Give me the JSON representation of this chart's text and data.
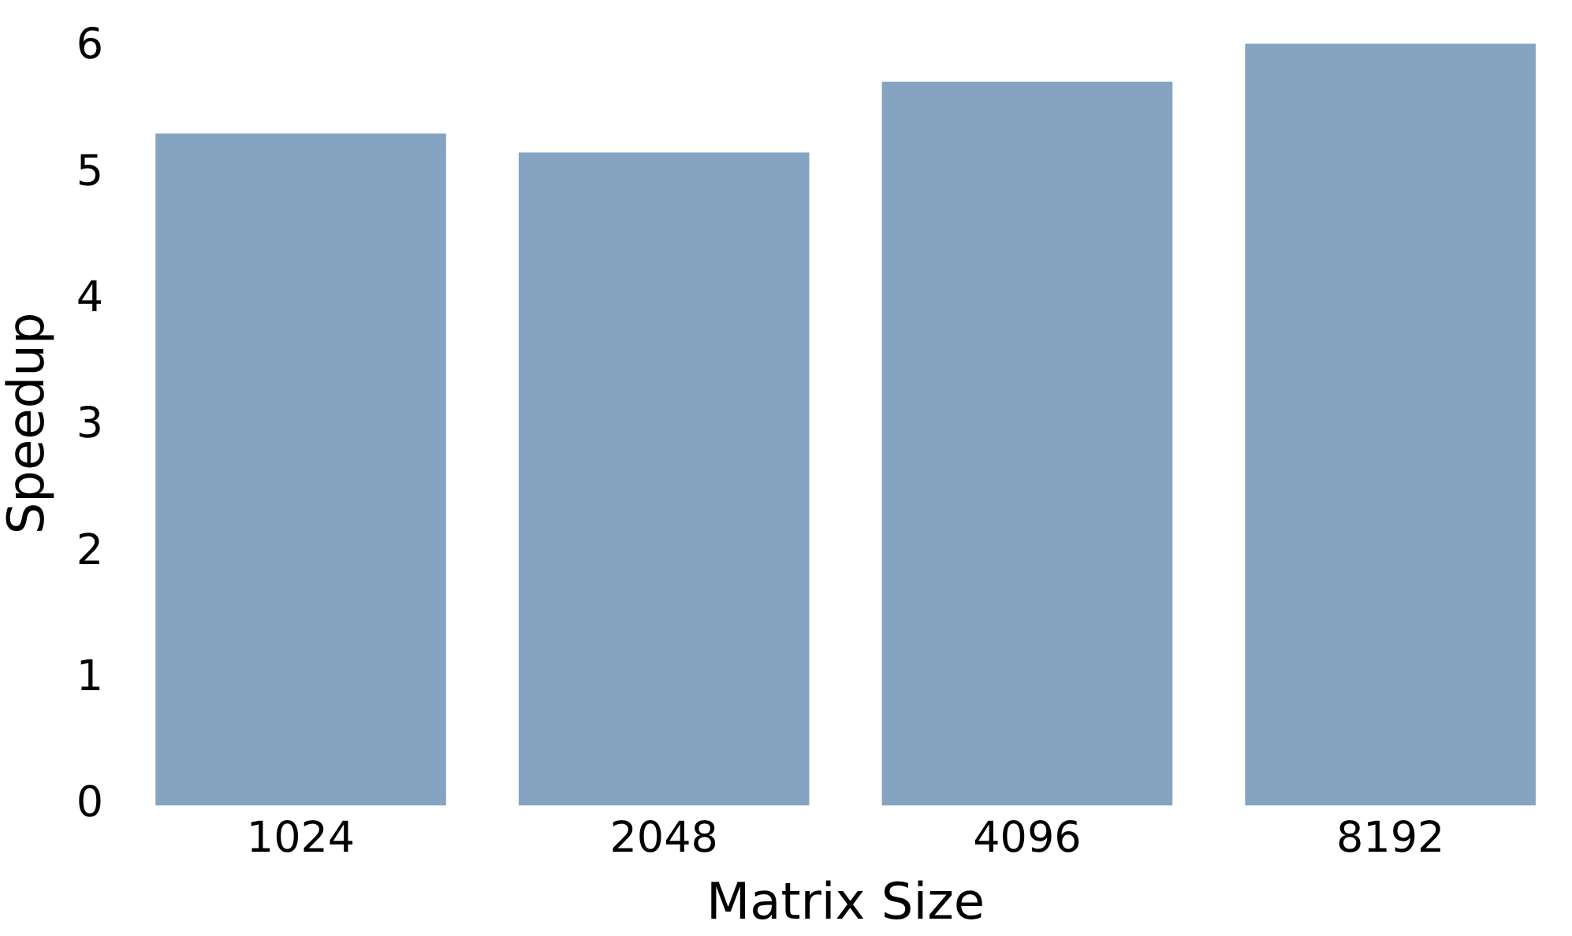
{
  "chart_data": {
    "type": "bar",
    "xlabel": "Matrix Size",
    "ylabel": "Speedup",
    "categories": [
      "1024",
      "2048",
      "4096",
      "8192"
    ],
    "values": [
      5.32,
      5.17,
      5.73,
      6.03
    ],
    "color": "#84a4c1",
    "ylim": [
      0,
      6.05
    ],
    "yticks": [
      0,
      1,
      2,
      3,
      4,
      5,
      6
    ],
    "grid": false,
    "legend": false
  }
}
